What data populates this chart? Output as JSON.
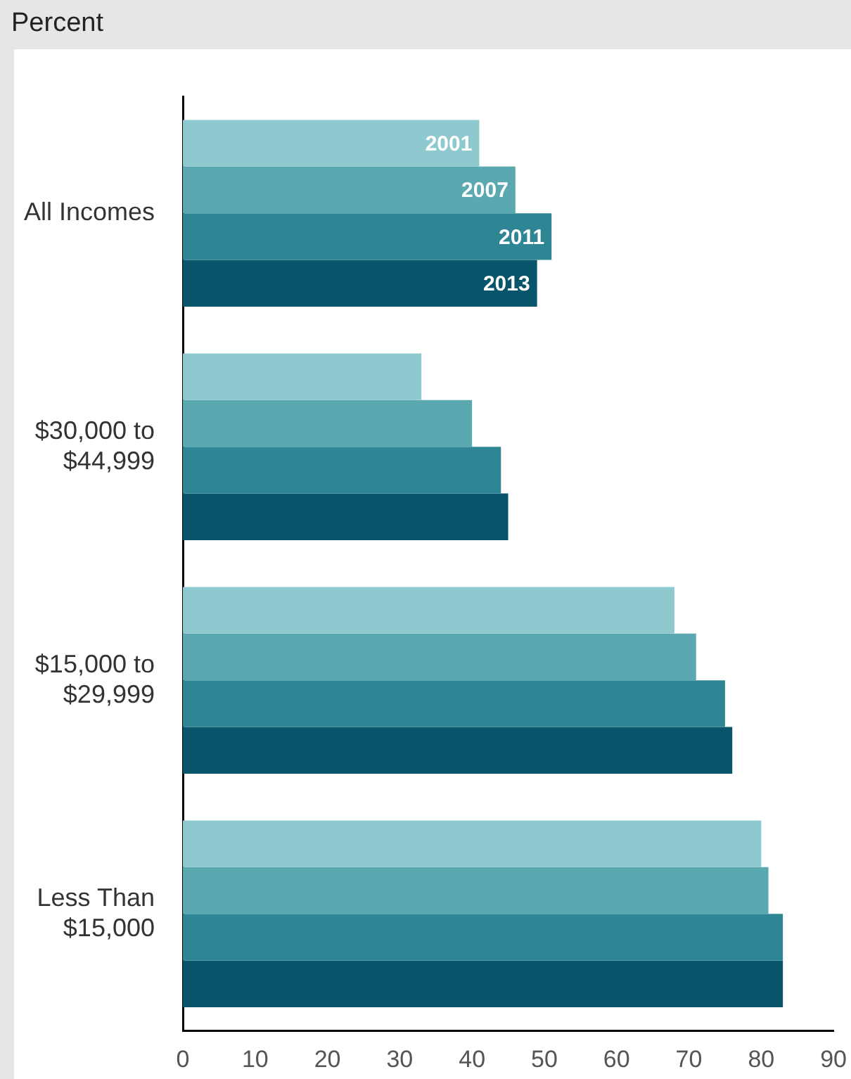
{
  "chart_data": {
    "type": "bar",
    "orientation": "horizontal",
    "xlabel": "Percent",
    "categories": [
      "All Incomes",
      "$30,000 to $44,999",
      "$15,000 to $29,999",
      "Less Than $15,000"
    ],
    "series": [
      {
        "name": "2001",
        "color": "#8fc9d0",
        "values": [
          41,
          33,
          68,
          80
        ]
      },
      {
        "name": "2007",
        "color": "#5aa9b1",
        "values": [
          46,
          40,
          71,
          81
        ]
      },
      {
        "name": "2011",
        "color": "#2e8694",
        "values": [
          51,
          44,
          75,
          83
        ]
      },
      {
        "name": "2013",
        "color": "#08546a",
        "values": [
          49,
          45,
          76,
          83
        ]
      }
    ],
    "xlim": [
      0,
      90
    ],
    "xticks": [
      0,
      10,
      20,
      30,
      40,
      50,
      60,
      70,
      80,
      90
    ],
    "grid": false,
    "legend": false
  }
}
